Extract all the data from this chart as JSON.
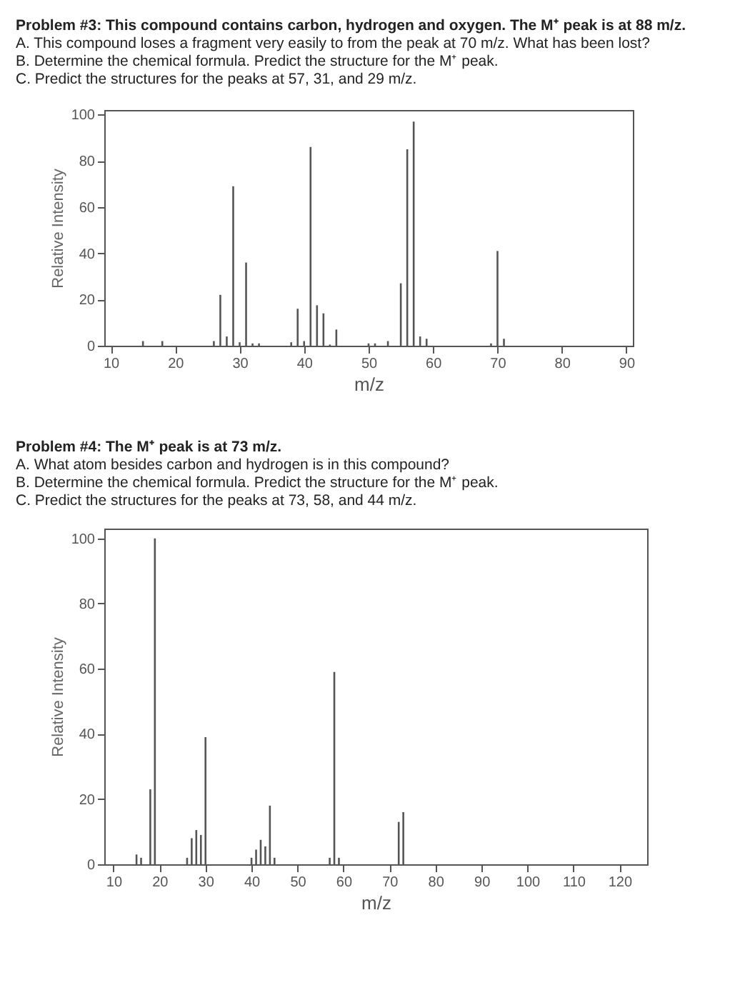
{
  "chart_data": [
    {
      "type": "bar",
      "title": "Problem #3: This compound contains carbon, hydrogen and oxygen. The M⁺ peak is at 88 m/z.",
      "annotations": [
        "A.  This compound loses a fragment very easily to from the peak at 70 m/z. What has been lost?",
        "B.  Determine the chemical formula. Predict the structure for the M⁺ peak.",
        "C.  Predict the structures for the peaks at 57, 31, and 29 m/z."
      ],
      "xlabel": "m/z",
      "ylabel": "Relative Intensity",
      "x": [
        15,
        18,
        26,
        27,
        28,
        29,
        30,
        31,
        32,
        33,
        38,
        39,
        40,
        41,
        42,
        43,
        44,
        45,
        50,
        51,
        53,
        55,
        56,
        57,
        58,
        59,
        69,
        70,
        71
      ],
      "values": [
        2,
        2,
        2,
        22,
        4,
        69,
        1.5,
        36,
        1,
        1,
        1.5,
        16,
        2,
        86,
        17.5,
        14,
        0.5,
        7,
        1,
        1,
        2,
        27,
        85,
        97,
        4,
        3,
        1,
        41,
        3
      ],
      "color": "#555555",
      "xlim": [
        9,
        91
      ],
      "xticks": [
        10,
        20,
        30,
        40,
        50,
        60,
        70,
        80,
        90
      ],
      "ylim": [
        0,
        102
      ],
      "yticks": [
        0,
        20,
        40,
        60,
        80,
        100
      ]
    },
    {
      "type": "bar",
      "title": "Problem #4: The M⁺ peak is at 73 m/z.",
      "annotations": [
        "A.  What atom besides carbon and hydrogen is in this compound?",
        "B.  Determine the chemical formula. Predict the structure for the M⁺ peak.",
        "C.  Predict the structures for the peaks at 73, 58, and 44 m/z."
      ],
      "xlabel": "m/z",
      "ylabel": "Relative Intensity",
      "x": [
        15,
        16,
        18,
        19,
        26,
        27,
        28,
        29,
        30,
        40,
        41,
        42,
        43,
        44,
        45,
        57,
        58,
        59,
        72,
        73
      ],
      "values": [
        3,
        2,
        23,
        100,
        2,
        8,
        10.5,
        9,
        39,
        2,
        4.5,
        7.5,
        5.5,
        18,
        2,
        2,
        59,
        2,
        13,
        16
      ],
      "color": "#555555",
      "xlim": [
        8,
        126
      ],
      "xticks": [
        10,
        20,
        30,
        40,
        50,
        60,
        70,
        80,
        90,
        100,
        110,
        120
      ],
      "ylim": [
        0,
        103
      ],
      "yticks": [
        0,
        20,
        40,
        60,
        80,
        100
      ]
    }
  ]
}
